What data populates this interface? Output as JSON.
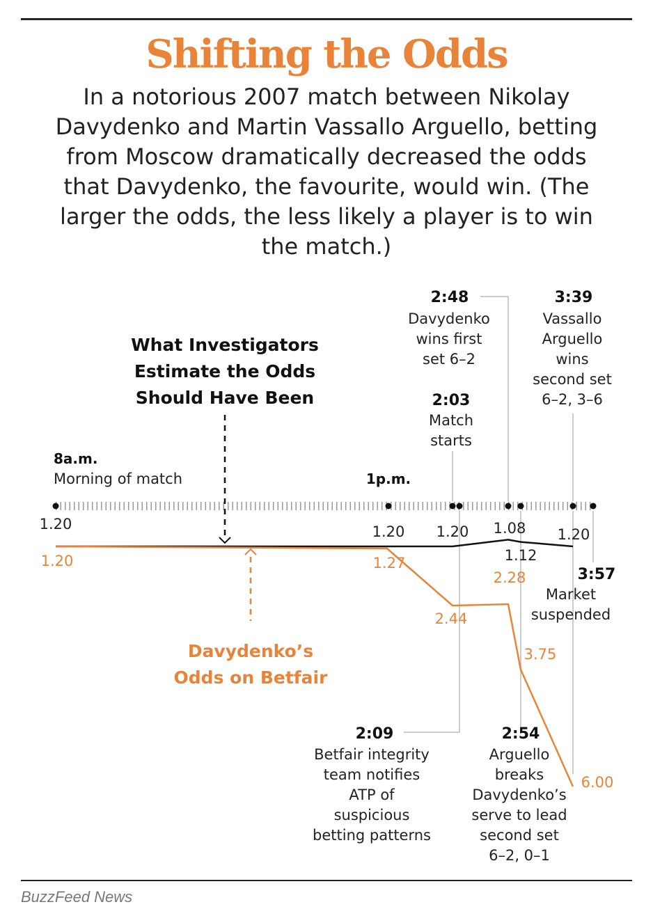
{
  "header": {
    "title": "Shifting the Odds",
    "subtitle": "In a notorious 2007 match between Nikolay Davydenko and Martin Vassallo Arguello, betting from Moscow dramatically decreased the odds that Davydenko, the favourite, would win. (The larger the odds, the less likely a player is to win the match.)"
  },
  "footer": {
    "credit": "BuzzFeed News"
  },
  "colors": {
    "betfair": "#e8843a",
    "estimate": "#111111",
    "guide": "#bbbbbb",
    "text": "#222222"
  },
  "chart_data": {
    "type": "line",
    "title": "Shifting the Odds",
    "x_axis": "time of day",
    "series": [
      {
        "name": "What Investigators Estimate the Odds Should Have Been",
        "color": "#111111",
        "points": [
          {
            "x": "8a.m.",
            "y": 1.2,
            "label": "1.20"
          },
          {
            "x": "1p.m.",
            "y": 1.2,
            "label": "1.20"
          },
          {
            "x": "2:03",
            "y": 1.2,
            "label": "1.20"
          },
          {
            "x": "2:48",
            "y": 1.08,
            "label": "1.08"
          },
          {
            "x": "2:54",
            "y": 1.12,
            "label": "1.12"
          },
          {
            "x": "3:39",
            "y": 1.2,
            "label": "1.20"
          }
        ]
      },
      {
        "name": "Davydenko’s Odds on Betfair",
        "color": "#e8843a",
        "points": [
          {
            "x": "8a.m.",
            "y": 1.2,
            "label": "1.20"
          },
          {
            "x": "1p.m.",
            "y": 1.27,
            "label": "1.27"
          },
          {
            "x": "2:03",
            "y": 2.44,
            "label": "2.44"
          },
          {
            "x": "2:48",
            "y": 2.28,
            "label": "2.28"
          },
          {
            "x": "2:54",
            "y": 3.75,
            "label": "3.75"
          },
          {
            "x": "3:39",
            "y": 6.0,
            "label": "6.00"
          }
        ]
      }
    ],
    "timeline": {
      "times": [
        "8a.m.",
        "1p.m.",
        "2:03",
        "2:09",
        "2:48",
        "2:54",
        "3:39",
        "3:57"
      ],
      "events": [
        {
          "time": "8a.m.",
          "text": [
            "Morning of match"
          ]
        },
        {
          "time": "1p.m.",
          "text": []
        },
        {
          "time": "2:03",
          "text": [
            "Match",
            "starts"
          ]
        },
        {
          "time": "2:09",
          "text": [
            "Betfair integrity",
            "team notifies",
            "ATP of",
            "suspicious",
            "betting patterns"
          ]
        },
        {
          "time": "2:48",
          "text": [
            "Davydenko",
            "wins first",
            "set 6–2"
          ]
        },
        {
          "time": "2:54",
          "text": [
            "Arguello",
            "breaks",
            "Davydenko’s",
            "serve to lead",
            "second set",
            "6–2, 0–1"
          ]
        },
        {
          "time": "3:39",
          "text": [
            "Vassallo",
            "Arguello",
            "wins",
            "second set",
            "6–2, 3–6"
          ]
        },
        {
          "time": "3:57",
          "text": [
            "Market",
            "suspended"
          ]
        }
      ]
    },
    "annotations": {
      "estimate_label": [
        "What Investigators",
        "Estimate the Odds",
        "Should Have Been"
      ],
      "betfair_label": [
        "Davydenko’s",
        "Odds on Betfair"
      ]
    }
  }
}
